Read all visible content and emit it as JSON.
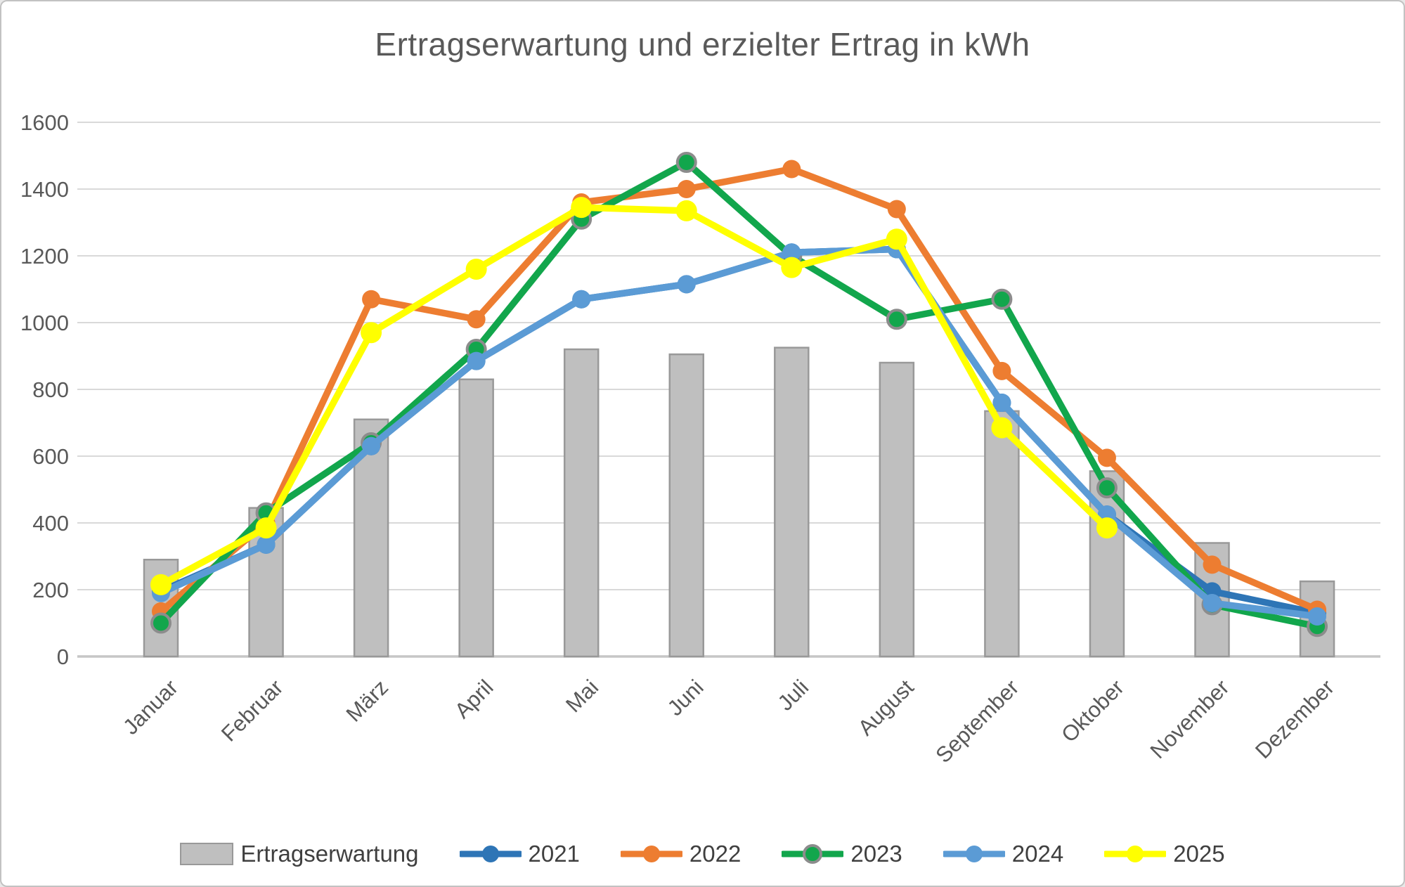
{
  "title": "Ertragserwartung und erzielter Ertrag in kWh",
  "chart_data": {
    "type": "bar+line combo",
    "title": "Ertragserwartung und erzielter Ertrag in kWh",
    "unit": "kWh",
    "categories": [
      "Januar",
      "Februar",
      "März",
      "April",
      "Mai",
      "Juni",
      "Juli",
      "August",
      "September",
      "Oktober",
      "November",
      "Dezember"
    ],
    "bar_series": {
      "name": "Ertragserwartung",
      "color": "#BFBFBF",
      "border_color": "#999999",
      "values": [
        290,
        445,
        710,
        830,
        920,
        905,
        925,
        880,
        735,
        555,
        340,
        225
      ]
    },
    "line_series": [
      {
        "name": "2021",
        "color": "#2E75B6",
        "marker_ring": null,
        "values": [
          195,
          335,
          630,
          885,
          1070,
          1115,
          1210,
          1220,
          760,
          425,
          195,
          130
        ]
      },
      {
        "name": "2022",
        "color": "#ED7D31",
        "marker_ring": null,
        "values": [
          135,
          400,
          1070,
          1010,
          1360,
          1400,
          1460,
          1340,
          855,
          595,
          275,
          140
        ]
      },
      {
        "name": "2023",
        "color": "#12A64C",
        "marker_ring": "#8C8C8C",
        "values": [
          100,
          430,
          640,
          920,
          1310,
          1480,
          1200,
          1010,
          1070,
          505,
          155,
          90
        ]
      },
      {
        "name": "2024",
        "color": "#5B9BD5",
        "marker_ring": null,
        "values": [
          190,
          335,
          630,
          885,
          1070,
          1115,
          1210,
          1220,
          760,
          425,
          160,
          120
        ]
      },
      {
        "name": "2025",
        "color": "#FFFF00",
        "marker_ring": null,
        "values": [
          215,
          385,
          970,
          1160,
          1345,
          1335,
          1165,
          1250,
          685,
          385,
          null,
          null
        ]
      }
    ],
    "ylim": [
      0,
      1600
    ],
    "ytick_step": 200,
    "yticks": [
      0,
      200,
      400,
      600,
      800,
      1000,
      1200,
      1400,
      1600
    ],
    "grid": true,
    "gridline_color": "#D9D9D9",
    "axis_line_color": "#C6C6C6",
    "tick_label_color": "#595959",
    "legend_position": "bottom",
    "legend_labels": [
      "Ertragserwartung",
      "2021",
      "2022",
      "2023",
      "2024",
      "2025"
    ]
  }
}
